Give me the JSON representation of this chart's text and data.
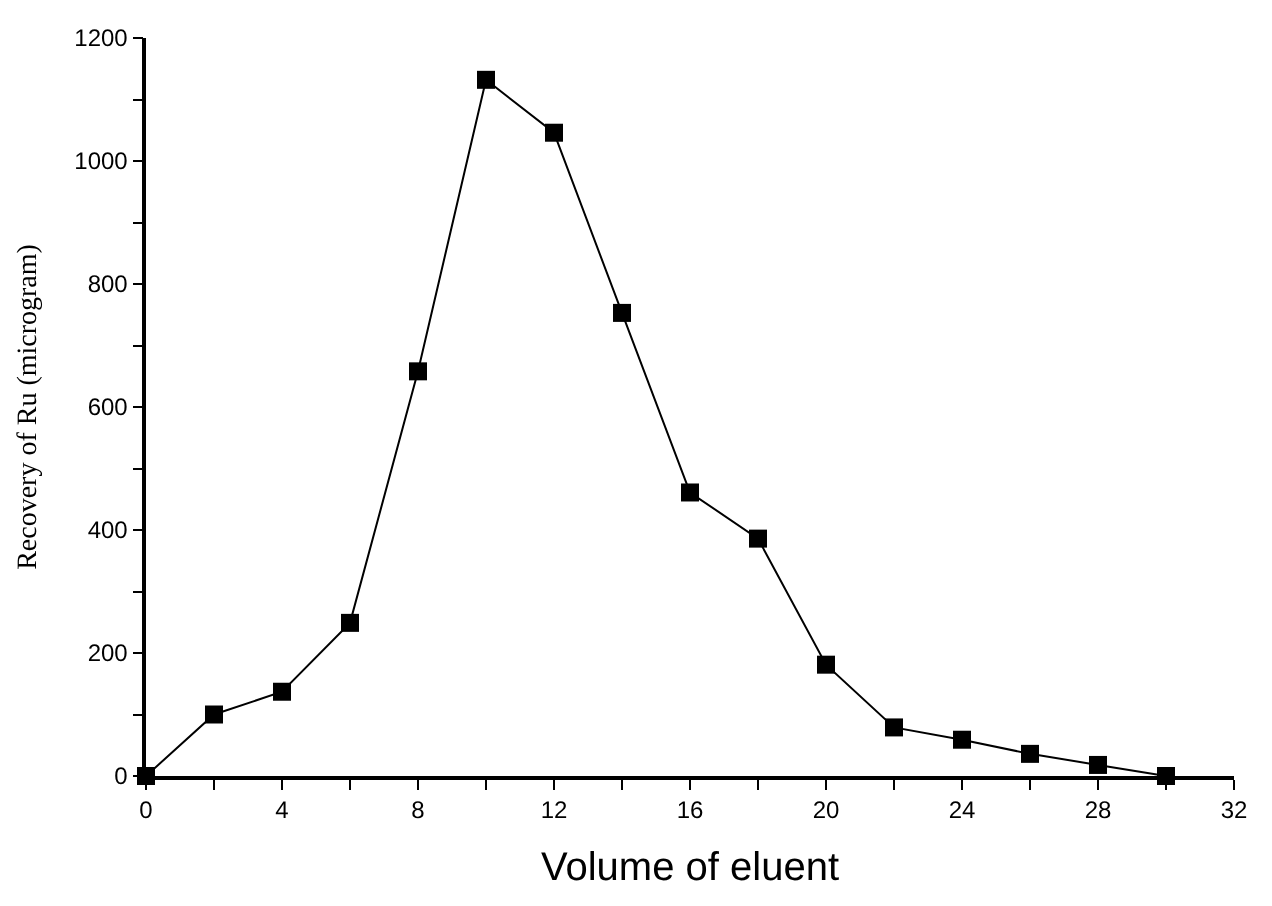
{
  "chart_data": {
    "type": "line",
    "xlabel": "Volume of eluent",
    "ylabel": "Recovery of Ru (microgram)",
    "x": [
      0,
      2,
      4,
      6,
      8,
      10,
      12,
      14,
      16,
      18,
      20,
      22,
      24,
      26,
      28,
      30
    ],
    "series": [
      {
        "color": "#000000",
        "values": [
          0,
          100,
          137,
          249,
          658,
          1132,
          1046,
          753,
          461,
          386,
          181,
          79,
          59,
          36,
          18,
          0
        ]
      }
    ],
    "xlim": [
      0,
      32
    ],
    "ylim": [
      0,
      1200
    ],
    "xticks": [
      0,
      {
        "value": 2,
        "label": null
      },
      4,
      {
        "value": 6,
        "label": null
      },
      8,
      {
        "value": 10,
        "label": null
      },
      12,
      {
        "value": 14,
        "label": null
      },
      16,
      {
        "value": 18,
        "label": null
      },
      20,
      {
        "value": 22,
        "label": null
      },
      24,
      {
        "value": 26,
        "label": null
      },
      28,
      {
        "value": 30,
        "label": null
      },
      32
    ],
    "yticks": [
      0,
      {
        "value": 100,
        "label": null
      },
      200,
      {
        "value": 300,
        "label": null
      },
      400,
      {
        "value": 500,
        "label": null
      },
      600,
      {
        "value": 700,
        "label": null
      },
      800,
      {
        "value": 900,
        "label": null
      },
      1000,
      {
        "value": 1100,
        "label": null
      },
      1200
    ],
    "marker": "square",
    "line_style": "solid"
  }
}
